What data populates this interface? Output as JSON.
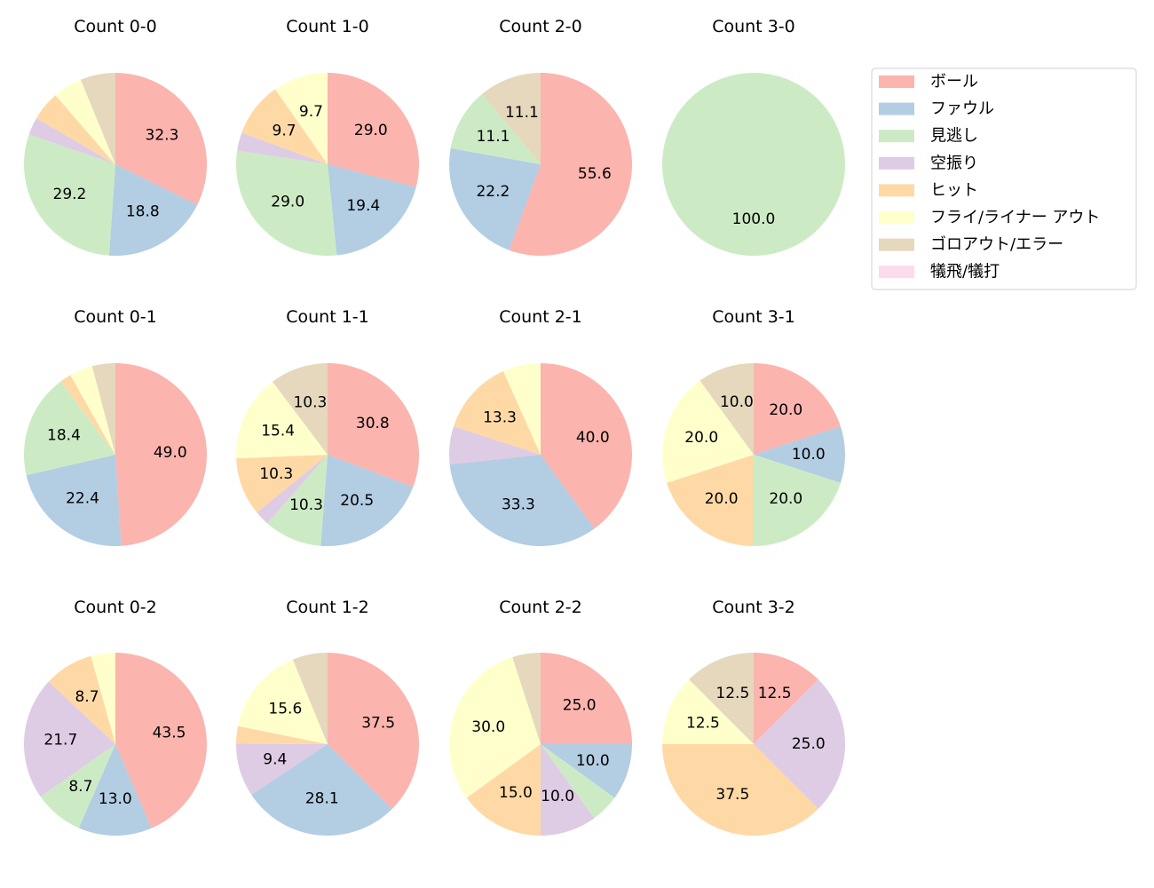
{
  "chart_data": {
    "type": "pie",
    "categories": [
      "ボール",
      "ファウル",
      "見逃し",
      "空振り",
      "ヒット",
      "フライ/ライナー アウト",
      "ゴロアウト/エラー",
      "犠飛/犠打"
    ],
    "colors": [
      "#fbb4ae",
      "#b3cde3",
      "#ccebc5",
      "#decbe4",
      "#fed9a6",
      "#ffffcc",
      "#e5d8bd",
      "#fddaec"
    ],
    "legend": "right",
    "start_angle": 90,
    "direction": "clockwise",
    "pies": [
      {
        "title": "Count 0-0",
        "values": [
          32.3,
          18.8,
          29.2,
          3.1,
          5.2,
          5.2,
          6.2,
          0
        ]
      },
      {
        "title": "Count 1-0",
        "values": [
          29.0,
          19.4,
          29.0,
          3.2,
          9.7,
          9.7,
          0,
          0
        ]
      },
      {
        "title": "Count 2-0",
        "values": [
          55.6,
          22.2,
          11.1,
          0,
          0,
          0,
          11.1,
          0
        ]
      },
      {
        "title": "Count 3-0",
        "values": [
          0,
          0,
          100.0,
          0,
          0,
          0,
          0,
          0
        ]
      },
      {
        "title": "Count 0-1",
        "values": [
          49.0,
          22.4,
          18.4,
          0,
          2.0,
          4.1,
          4.1,
          0
        ]
      },
      {
        "title": "Count 1-1",
        "values": [
          30.8,
          20.5,
          10.3,
          2.6,
          10.3,
          15.4,
          10.3,
          0
        ]
      },
      {
        "title": "Count 2-1",
        "values": [
          40.0,
          33.3,
          0,
          6.7,
          13.3,
          6.7,
          0,
          0
        ]
      },
      {
        "title": "Count 3-1",
        "values": [
          20.0,
          10.0,
          20.0,
          0,
          20.0,
          20.0,
          10.0,
          0
        ]
      },
      {
        "title": "Count 0-2",
        "values": [
          43.5,
          13.0,
          8.7,
          21.7,
          8.7,
          4.3,
          0,
          0
        ]
      },
      {
        "title": "Count 1-2",
        "values": [
          37.5,
          28.1,
          0,
          9.4,
          3.1,
          15.6,
          6.2,
          0
        ]
      },
      {
        "title": "Count 2-2",
        "values": [
          25.0,
          10.0,
          5.0,
          10.0,
          15.0,
          30.0,
          5.0,
          0
        ]
      },
      {
        "title": "Count 3-2",
        "values": [
          12.5,
          0,
          0,
          25.0,
          37.5,
          12.5,
          12.5,
          0
        ]
      }
    ]
  }
}
